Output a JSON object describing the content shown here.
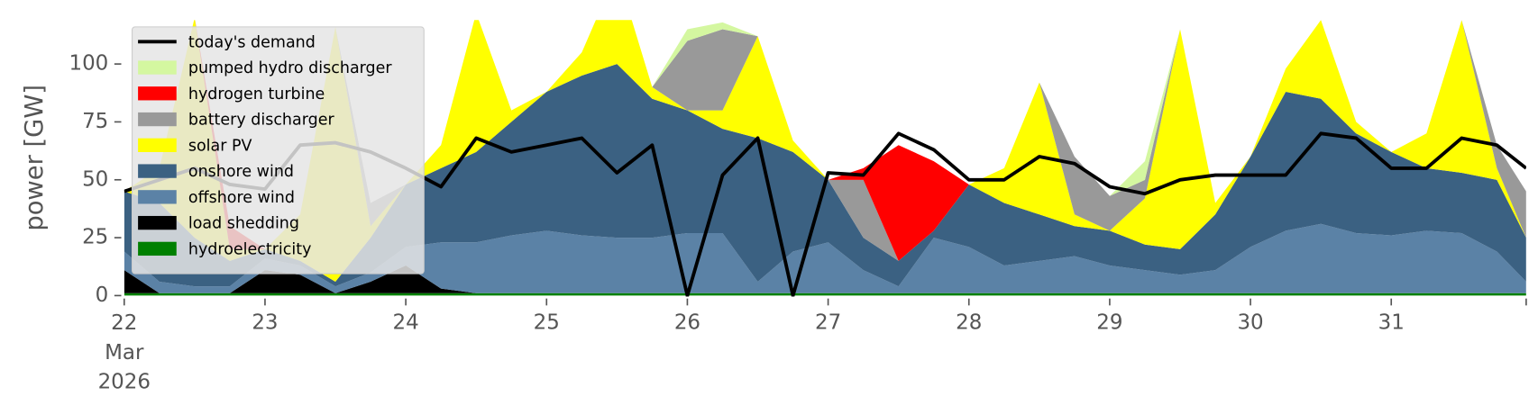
{
  "chart_data": {
    "type": "area",
    "y_label": "power [GW]",
    "x": [
      "2026-03-22T00:00",
      "2026-03-22T06:00",
      "2026-03-22T12:00",
      "2026-03-22T18:00",
      "2026-03-23T00:00",
      "2026-03-23T06:00",
      "2026-03-23T12:00",
      "2026-03-23T18:00",
      "2026-03-24T00:00",
      "2026-03-24T06:00",
      "2026-03-24T12:00",
      "2026-03-24T18:00",
      "2026-03-25T00:00",
      "2026-03-25T06:00",
      "2026-03-25T12:00",
      "2026-03-25T18:00",
      "2026-03-26T00:00",
      "2026-03-26T06:00",
      "2026-03-26T12:00",
      "2026-03-26T18:00",
      "2026-03-27T00:00",
      "2026-03-27T06:00",
      "2026-03-27T12:00",
      "2026-03-27T18:00",
      "2026-03-28T00:00",
      "2026-03-28T06:00",
      "2026-03-28T12:00",
      "2026-03-28T18:00",
      "2026-03-29T00:00",
      "2026-03-29T06:00",
      "2026-03-29T12:00",
      "2026-03-29T18:00",
      "2026-03-30T00:00",
      "2026-03-30T06:00",
      "2026-03-30T12:00",
      "2026-03-30T18:00",
      "2026-03-31T00:00",
      "2026-03-31T06:00",
      "2026-03-31T12:00",
      "2026-03-31T18:00",
      "2026-03-31T23:00"
    ],
    "xlim": [
      "2026-03-22T00:00",
      "2026-03-31T23:00"
    ],
    "xticks": [
      {
        "value": "2026-03-22T00:00",
        "label": "22\nMar\n2026"
      },
      {
        "value": "2026-03-23T00:00",
        "label": "23"
      },
      {
        "value": "2026-03-24T00:00",
        "label": "24"
      },
      {
        "value": "2026-03-25T00:00",
        "label": "25"
      },
      {
        "value": "2026-03-26T00:00",
        "label": "26"
      },
      {
        "value": "2026-03-27T00:00",
        "label": "27"
      },
      {
        "value": "2026-03-28T00:00",
        "label": "28"
      },
      {
        "value": "2026-03-29T00:00",
        "label": "29"
      },
      {
        "value": "2026-03-30T00:00",
        "label": "30"
      },
      {
        "value": "2026-03-31T00:00",
        "label": "31"
      }
    ],
    "ylim": [
      0,
      119
    ],
    "yticks": [
      0,
      25,
      50,
      75,
      100
    ],
    "legend": "upper left",
    "series": [
      {
        "name": "today's demand",
        "type": "line",
        "color": "#000000",
        "values": [
          45,
          50,
          55,
          48,
          46,
          65,
          66,
          62,
          55,
          47,
          68,
          62,
          65,
          68,
          53,
          65,
          0,
          52,
          68,
          0,
          53,
          52,
          70,
          63,
          50,
          50,
          60,
          57,
          47,
          44,
          50,
          52,
          52,
          52,
          70,
          68,
          55,
          55,
          68,
          65,
          55
        ]
      },
      {
        "name": "pumped hydro discharger",
        "color": "#d4f7a0",
        "values": [
          0,
          0,
          0,
          0,
          0,
          0,
          0,
          0,
          0,
          0,
          0,
          0,
          0,
          0,
          0,
          0,
          5,
          3,
          0,
          0,
          0,
          0,
          0,
          0,
          0,
          0,
          0,
          0,
          0,
          8,
          0,
          0,
          0,
          0,
          0,
          0,
          0,
          0,
          0,
          0,
          0
        ]
      },
      {
        "name": "hydrogen turbine",
        "color": "#ff0000",
        "values": [
          0,
          0,
          0,
          10,
          0,
          0,
          0,
          0,
          0,
          0,
          0,
          0,
          0,
          0,
          0,
          0,
          0,
          0,
          0,
          0,
          0,
          5,
          50,
          30,
          0,
          0,
          0,
          0,
          0,
          0,
          0,
          0,
          0,
          0,
          0,
          0,
          0,
          0,
          0,
          0,
          0
        ]
      },
      {
        "name": "battery discharger",
        "color": "#999999",
        "values": [
          0,
          0,
          0,
          0,
          0,
          0,
          0,
          10,
          0,
          0,
          0,
          0,
          0,
          0,
          0,
          0,
          30,
          35,
          0,
          0,
          0,
          25,
          0,
          0,
          0,
          0,
          0,
          25,
          15,
          8,
          0,
          0,
          0,
          0,
          0,
          0,
          0,
          0,
          0,
          10,
          20
        ]
      },
      {
        "name": "solar PV",
        "color": "#ffff00",
        "values": [
          0,
          15,
          95,
          5,
          0,
          20,
          110,
          5,
          0,
          10,
          60,
          5,
          0,
          10,
          40,
          5,
          0,
          8,
          44,
          5,
          0,
          0,
          0,
          0,
          0,
          15,
          57,
          5,
          0,
          20,
          95,
          5,
          0,
          10,
          34,
          5,
          0,
          15,
          66,
          5,
          0
        ]
      },
      {
        "name": "onshore wind",
        "color": "#3b6182",
        "values": [
          26,
          34,
          21,
          11,
          4,
          2,
          2,
          15,
          27,
          32,
          39,
          49,
          60,
          69,
          75,
          60,
          53,
          45,
          62,
          43,
          27,
          14,
          11,
          3,
          27,
          27,
          20,
          13,
          15,
          11,
          11,
          24,
          39,
          60,
          54,
          43,
          36,
          27,
          26,
          31,
          19
        ]
      },
      {
        "name": "offshore wind",
        "color": "#5b82a6",
        "values": [
          8,
          5,
          3,
          3,
          5,
          4,
          3,
          4,
          8,
          20,
          22,
          25,
          27,
          25,
          24,
          24,
          26,
          26,
          5,
          18,
          22,
          10,
          3,
          24,
          20,
          12,
          14,
          16,
          12,
          10,
          8,
          10,
          20,
          27,
          30,
          26,
          25,
          27,
          26,
          18,
          5
        ]
      },
      {
        "name": "load shedding",
        "color": "#000000",
        "values": [
          10,
          0,
          0,
          0,
          10,
          8,
          0,
          5,
          12,
          2,
          0,
          0,
          0,
          0,
          0,
          0,
          0,
          0,
          0,
          0,
          0,
          0,
          0,
          0,
          0,
          0,
          0,
          0,
          0,
          0,
          0,
          0,
          0,
          0,
          0,
          0,
          0,
          0,
          0,
          0,
          0
        ]
      },
      {
        "name": "hydroelectricity",
        "color": "#008000",
        "values": [
          1,
          1,
          1,
          1,
          1,
          1,
          1,
          1,
          1,
          1,
          1,
          1,
          1,
          1,
          1,
          1,
          1,
          1,
          1,
          1,
          1,
          1,
          1,
          1,
          1,
          1,
          1,
          1,
          1,
          1,
          1,
          1,
          1,
          1,
          1,
          1,
          1,
          1,
          1,
          1,
          1
        ]
      }
    ]
  }
}
